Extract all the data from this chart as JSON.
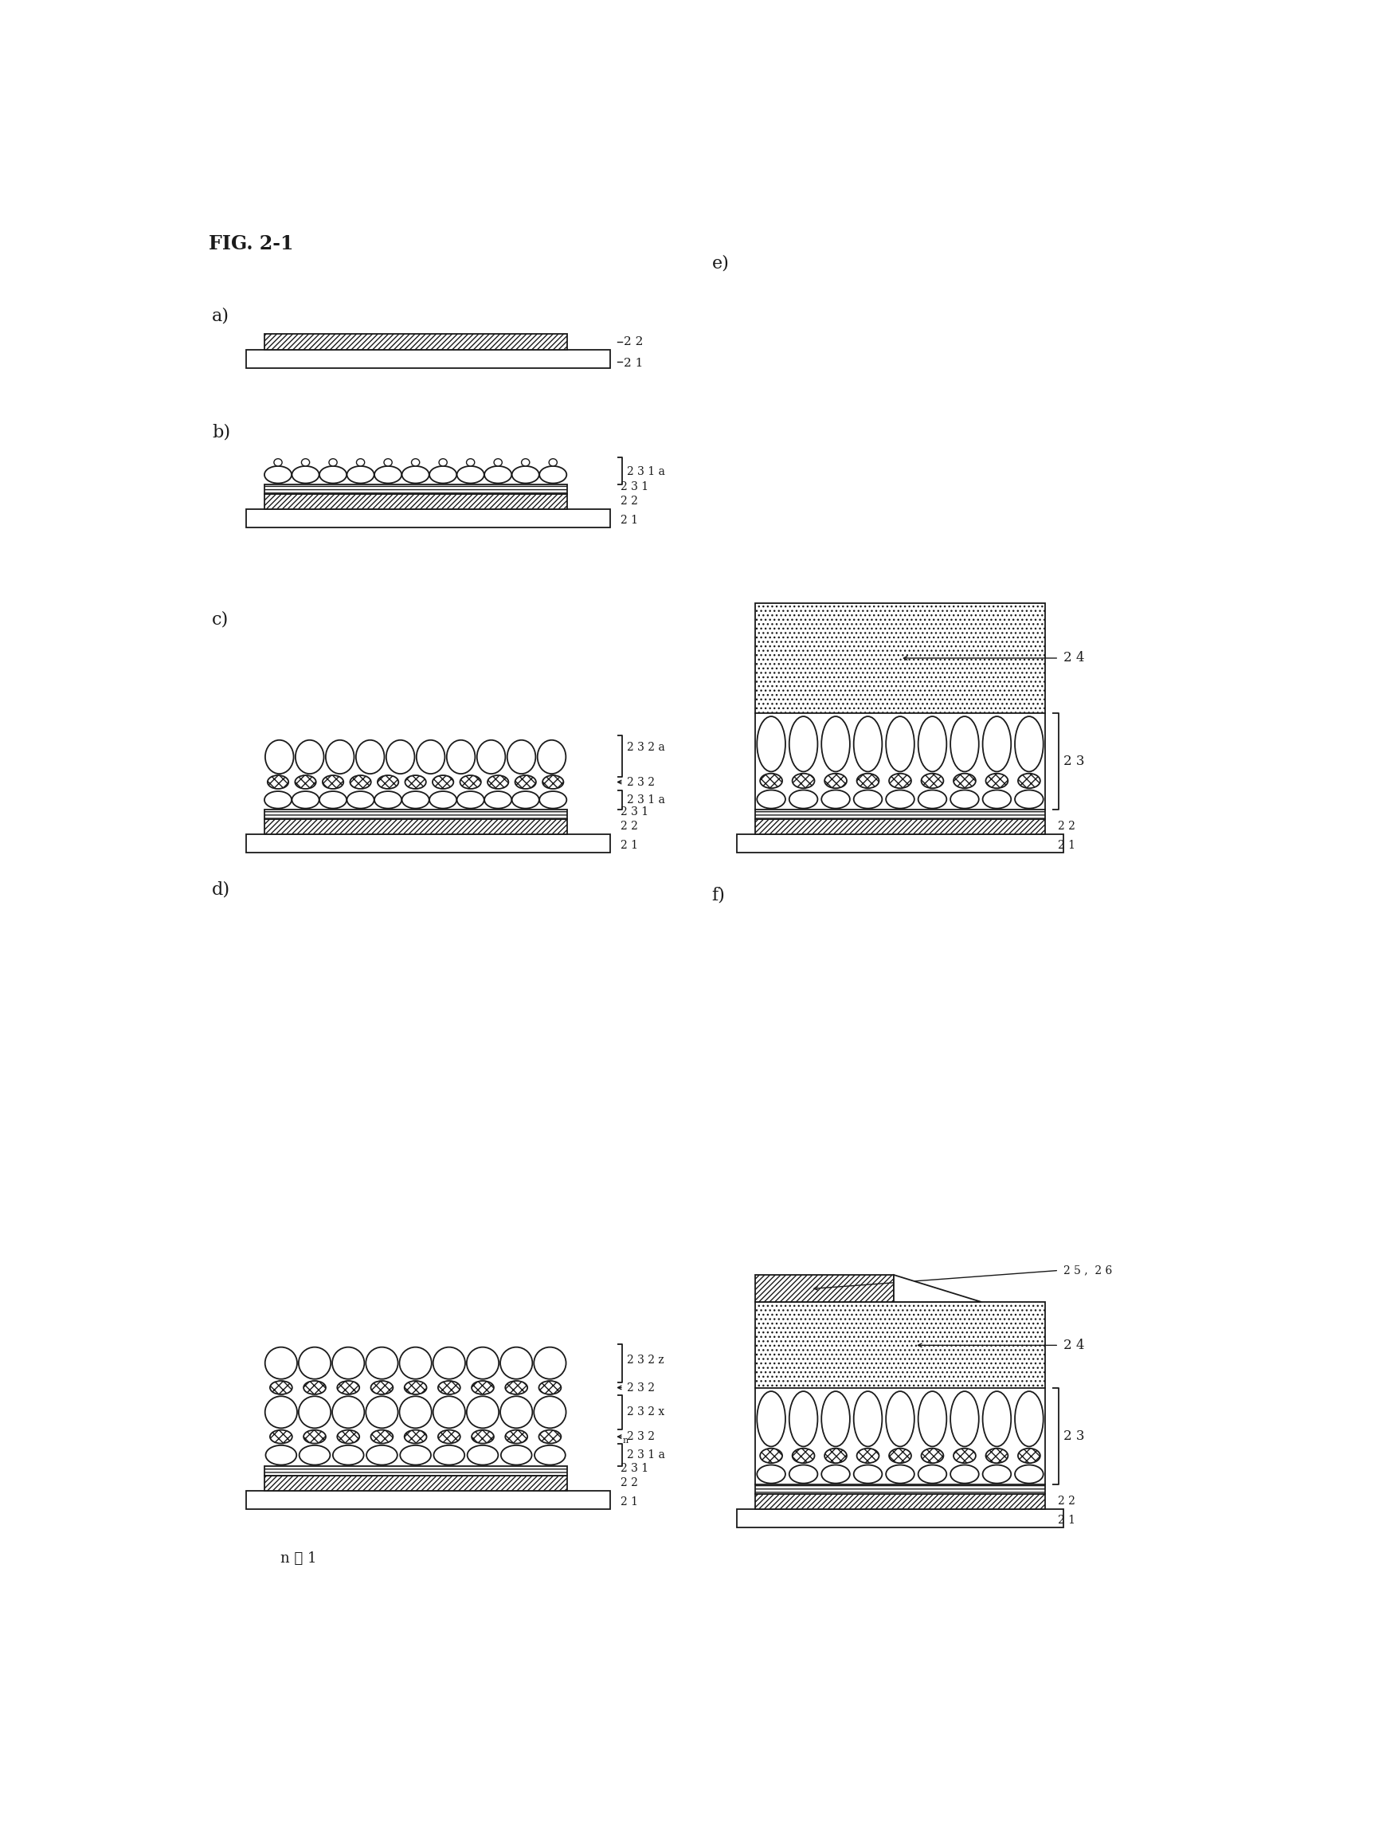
{
  "title": "FIG. 2-1",
  "bg_color": "#ffffff",
  "line_color": "#1a1a1a",
  "fig_width": 17.55,
  "fig_height": 23.08,
  "note": "n ≧ 1",
  "labels": {
    "21": "2 1",
    "22": "2 2",
    "231": "2 3 1",
    "231a": "2 3 1 a",
    "232": "2 3 2",
    "232a": "2 3 2 a",
    "232x": "2 3 2 x",
    "232z": "2 3 2 z",
    "23": "2 3",
    "24": "2 4",
    "2526": "2 5 ,  2 6"
  }
}
